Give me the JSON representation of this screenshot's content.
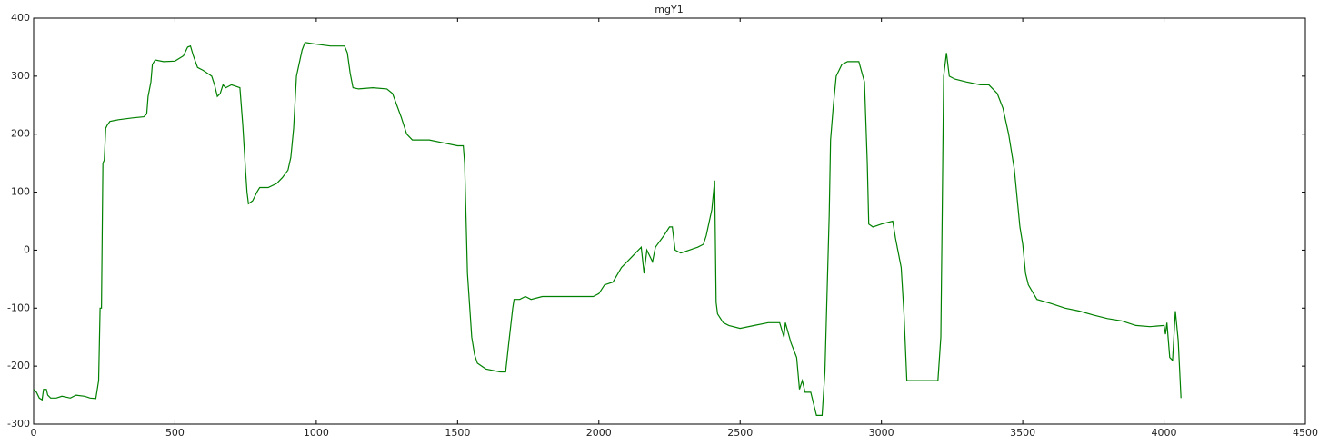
{
  "chart_data": {
    "type": "line",
    "title": "mgY1",
    "xlim": [
      0,
      4500
    ],
    "xticks": [
      0,
      500,
      1000,
      1500,
      2000,
      2500,
      3000,
      3500,
      4000,
      4500
    ],
    "ylim": [
      -300,
      400
    ],
    "yticks": [
      -300,
      -200,
      -100,
      0,
      100,
      200,
      300,
      400
    ],
    "series": [
      {
        "color": "#008000",
        "x": [
          0,
          10,
          20,
          30,
          35,
          45,
          50,
          60,
          80,
          100,
          130,
          150,
          180,
          200,
          220,
          230,
          235,
          240,
          245,
          250,
          255,
          260,
          270,
          300,
          350,
          390,
          400,
          405,
          415,
          420,
          430,
          460,
          500,
          530,
          545,
          555,
          565,
          580,
          600,
          630,
          640,
          650,
          660,
          670,
          680,
          700,
          730,
          740,
          750,
          755,
          760,
          775,
          790,
          800,
          830,
          860,
          880,
          900,
          910,
          920,
          930,
          950,
          960,
          1000,
          1050,
          1100,
          1110,
          1120,
          1130,
          1150,
          1200,
          1250,
          1270,
          1300,
          1320,
          1340,
          1400,
          1450,
          1500,
          1520,
          1525,
          1535,
          1550,
          1560,
          1570,
          1600,
          1650,
          1670,
          1680,
          1695,
          1700,
          1720,
          1740,
          1760,
          1800,
          1900,
          1980,
          2000,
          2020,
          2050,
          2080,
          2100,
          2130,
          2150,
          2160,
          2170,
          2190,
          2200,
          2230,
          2250,
          2260,
          2270,
          2290,
          2320,
          2350,
          2370,
          2380,
          2400,
          2410,
          2415,
          2420,
          2440,
          2460,
          2500,
          2550,
          2600,
          2640,
          2655,
          2660,
          2680,
          2700,
          2710,
          2720,
          2730,
          2750,
          2770,
          2790,
          2800,
          2815,
          2820,
          2830,
          2840,
          2860,
          2880,
          2920,
          2940,
          2950,
          2955,
          2970,
          3000,
          3040,
          3050,
          3070,
          3080,
          3090,
          3100,
          3200,
          3210,
          3215,
          3220,
          3230,
          3240,
          3260,
          3300,
          3350,
          3380,
          3410,
          3430,
          3450,
          3470,
          3490,
          3500,
          3510,
          3520,
          3550,
          3600,
          3650,
          3700,
          3750,
          3800,
          3850,
          3900,
          3950,
          4000,
          4005,
          4010,
          4020,
          4030,
          4040,
          4050,
          4060
        ],
        "values": [
          -240,
          -245,
          -255,
          -258,
          -240,
          -240,
          -250,
          -255,
          -255,
          -252,
          -255,
          -250,
          -252,
          -255,
          -256,
          -225,
          -100,
          -100,
          150,
          155,
          210,
          215,
          222,
          225,
          228,
          230,
          235,
          265,
          290,
          320,
          328,
          325,
          326,
          335,
          350,
          352,
          335,
          315,
          310,
          300,
          285,
          265,
          270,
          285,
          280,
          285,
          280,
          215,
          135,
          100,
          80,
          85,
          100,
          108,
          108,
          115,
          125,
          138,
          160,
          210,
          300,
          345,
          358,
          355,
          352,
          352,
          340,
          305,
          280,
          278,
          280,
          278,
          270,
          230,
          200,
          190,
          190,
          185,
          180,
          180,
          150,
          -40,
          -150,
          -180,
          -195,
          -205,
          -210,
          -210,
          -165,
          -100,
          -85,
          -85,
          -80,
          -85,
          -80,
          -80,
          -80,
          -75,
          -60,
          -55,
          -30,
          -20,
          -5,
          5,
          -40,
          0,
          -20,
          5,
          25,
          40,
          40,
          0,
          -5,
          0,
          5,
          10,
          25,
          70,
          120,
          -90,
          -110,
          -125,
          -130,
          -135,
          -130,
          -125,
          -125,
          -150,
          -125,
          -160,
          -185,
          -240,
          -225,
          -245,
          -245,
          -285,
          -285,
          -210,
          60,
          190,
          250,
          300,
          320,
          325,
          325,
          290,
          150,
          45,
          40,
          45,
          50,
          20,
          -30,
          -110,
          -225,
          -225,
          -225,
          -150,
          60,
          300,
          340,
          300,
          295,
          290,
          285,
          285,
          270,
          245,
          200,
          140,
          40,
          10,
          -40,
          -60,
          -85,
          -92,
          -100,
          -105,
          -112,
          -118,
          -122,
          -130,
          -132,
          -130,
          -145,
          -125,
          -185,
          -190,
          -105,
          -155,
          -255
        ]
      }
    ]
  }
}
